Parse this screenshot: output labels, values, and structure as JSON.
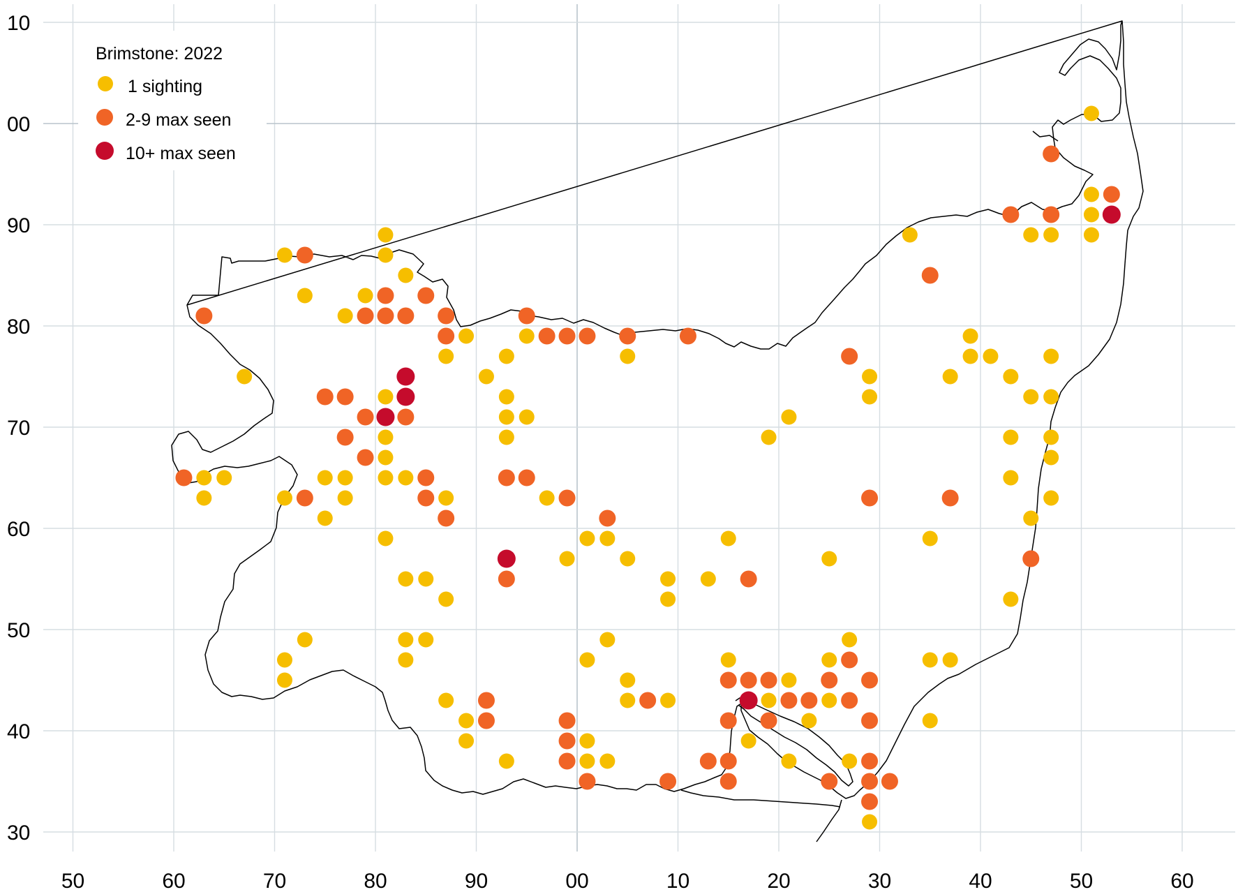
{
  "legend": {
    "title": "Brimstone:  2022",
    "items": [
      {
        "label": "1 sighting",
        "color": "#F6BE00"
      },
      {
        "label": "2-9 max seen",
        "color": "#F06426"
      },
      {
        "label": "10+ max seen",
        "color": "#C50B2C"
      }
    ]
  },
  "axes": {
    "x_ticks": [
      "50",
      "60",
      "70",
      "80",
      "90",
      "00",
      "10",
      "20",
      "30",
      "40",
      "50",
      "60"
    ],
    "y_ticks": [
      "10",
      "00",
      "90",
      "80",
      "70",
      "60",
      "50",
      "40",
      "30"
    ]
  },
  "chart_data": {
    "type": "scatter",
    "x_range": [
      -50,
      60
    ],
    "y_range": [
      30,
      110
    ],
    "categories": [
      "1 sighting",
      "2-9 max seen",
      "10+ max seen"
    ],
    "points": [
      [
        51,
        101,
        0
      ],
      [
        47,
        97,
        1
      ],
      [
        51,
        93,
        0
      ],
      [
        53,
        93,
        1
      ],
      [
        43,
        91,
        1
      ],
      [
        47,
        91,
        1
      ],
      [
        51,
        91,
        0
      ],
      [
        53,
        91,
        2
      ],
      [
        33,
        89,
        0
      ],
      [
        45,
        89,
        0
      ],
      [
        47,
        89,
        0
      ],
      [
        51,
        89,
        0
      ],
      [
        -19,
        89,
        0
      ],
      [
        -19,
        87,
        0
      ],
      [
        -29,
        87,
        0
      ],
      [
        -27,
        87,
        1
      ],
      [
        -17,
        85,
        0
      ],
      [
        35,
        85,
        1
      ],
      [
        -27,
        83,
        0
      ],
      [
        -21,
        83,
        0
      ],
      [
        -19,
        83,
        1
      ],
      [
        -15,
        83,
        1
      ],
      [
        -37,
        81,
        1
      ],
      [
        -23,
        81,
        0
      ],
      [
        -21,
        81,
        1
      ],
      [
        -19,
        81,
        1
      ],
      [
        -17,
        81,
        1
      ],
      [
        -13,
        81,
        1
      ],
      [
        -5,
        81,
        1
      ],
      [
        -13,
        79,
        1
      ],
      [
        -11,
        79,
        0
      ],
      [
        -5,
        79,
        0
      ],
      [
        -3,
        79,
        1
      ],
      [
        -1,
        79,
        1
      ],
      [
        1,
        79,
        1
      ],
      [
        5,
        79,
        1
      ],
      [
        11,
        79,
        1
      ],
      [
        39,
        79,
        0
      ],
      [
        -13,
        77,
        0
      ],
      [
        -7,
        77,
        0
      ],
      [
        5,
        77,
        0
      ],
      [
        27,
        77,
        1
      ],
      [
        39,
        77,
        0
      ],
      [
        41,
        77,
        0
      ],
      [
        47,
        77,
        0
      ],
      [
        -33,
        75,
        0
      ],
      [
        -9,
        75,
        0
      ],
      [
        -17,
        75,
        2
      ],
      [
        29,
        75,
        0
      ],
      [
        37,
        75,
        0
      ],
      [
        43,
        75,
        0
      ],
      [
        -25,
        73,
        1
      ],
      [
        -23,
        73,
        1
      ],
      [
        -19,
        73,
        0
      ],
      [
        -17,
        73,
        2
      ],
      [
        -7,
        73,
        0
      ],
      [
        29,
        73,
        0
      ],
      [
        45,
        73,
        0
      ],
      [
        47,
        73,
        0
      ],
      [
        -21,
        71,
        1
      ],
      [
        -19,
        71,
        2
      ],
      [
        -17,
        71,
        1
      ],
      [
        -7,
        71,
        0
      ],
      [
        -5,
        71,
        0
      ],
      [
        21,
        71,
        0
      ],
      [
        -23,
        69,
        1
      ],
      [
        -19,
        69,
        0
      ],
      [
        -7,
        69,
        0
      ],
      [
        19,
        69,
        0
      ],
      [
        43,
        69,
        0
      ],
      [
        47,
        69,
        0
      ],
      [
        -21,
        67,
        1
      ],
      [
        -19,
        67,
        0
      ],
      [
        47,
        67,
        0
      ],
      [
        -39,
        65,
        1
      ],
      [
        -37,
        65,
        0
      ],
      [
        -35,
        65,
        0
      ],
      [
        -25,
        65,
        0
      ],
      [
        -23,
        65,
        0
      ],
      [
        -19,
        65,
        0
      ],
      [
        -17,
        65,
        0
      ],
      [
        -15,
        65,
        1
      ],
      [
        -7,
        65,
        1
      ],
      [
        -5,
        65,
        1
      ],
      [
        43,
        65,
        0
      ],
      [
        -37,
        63,
        0
      ],
      [
        -29,
        63,
        0
      ],
      [
        -27,
        63,
        1
      ],
      [
        -23,
        63,
        0
      ],
      [
        -15,
        63,
        1
      ],
      [
        -13,
        63,
        0
      ],
      [
        -3,
        63,
        0
      ],
      [
        -1,
        63,
        1
      ],
      [
        29,
        63,
        1
      ],
      [
        37,
        63,
        1
      ],
      [
        47,
        63,
        0
      ],
      [
        -25,
        61,
        0
      ],
      [
        -13,
        61,
        1
      ],
      [
        3,
        61,
        1
      ],
      [
        45,
        61,
        0
      ],
      [
        -19,
        59,
        0
      ],
      [
        1,
        59,
        0
      ],
      [
        3,
        59,
        0
      ],
      [
        15,
        59,
        0
      ],
      [
        35,
        59,
        0
      ],
      [
        -7,
        57,
        2
      ],
      [
        -1,
        57,
        0
      ],
      [
        5,
        57,
        0
      ],
      [
        25,
        57,
        0
      ],
      [
        45,
        57,
        1
      ],
      [
        -17,
        55,
        0
      ],
      [
        -15,
        55,
        0
      ],
      [
        -7,
        55,
        1
      ],
      [
        9,
        55,
        0
      ],
      [
        13,
        55,
        0
      ],
      [
        17,
        55,
        1
      ],
      [
        -13,
        53,
        0
      ],
      [
        9,
        53,
        0
      ],
      [
        43,
        53,
        0
      ],
      [
        -27,
        49,
        0
      ],
      [
        -17,
        49,
        0
      ],
      [
        -15,
        49,
        0
      ],
      [
        3,
        49,
        0
      ],
      [
        27,
        49,
        0
      ],
      [
        -29,
        47,
        0
      ],
      [
        -17,
        47,
        0
      ],
      [
        1,
        47,
        0
      ],
      [
        15,
        47,
        0
      ],
      [
        25,
        47,
        0
      ],
      [
        27,
        47,
        1
      ],
      [
        35,
        47,
        0
      ],
      [
        37,
        47,
        0
      ],
      [
        -29,
        45,
        0
      ],
      [
        5,
        45,
        0
      ],
      [
        15,
        45,
        1
      ],
      [
        17,
        45,
        1
      ],
      [
        19,
        45,
        1
      ],
      [
        21,
        45,
        0
      ],
      [
        25,
        45,
        1
      ],
      [
        29,
        45,
        1
      ],
      [
        -13,
        43,
        0
      ],
      [
        -9,
        43,
        1
      ],
      [
        5,
        43,
        0
      ],
      [
        7,
        43,
        1
      ],
      [
        9,
        43,
        0
      ],
      [
        17,
        43,
        2
      ],
      [
        19,
        43,
        0
      ],
      [
        21,
        43,
        1
      ],
      [
        23,
        43,
        1
      ],
      [
        25,
        43,
        0
      ],
      [
        27,
        43,
        1
      ],
      [
        -11,
        41,
        0
      ],
      [
        -9,
        41,
        1
      ],
      [
        -1,
        41,
        1
      ],
      [
        15,
        41,
        1
      ],
      [
        19,
        41,
        1
      ],
      [
        23,
        41,
        0
      ],
      [
        29,
        41,
        1
      ],
      [
        35,
        41,
        0
      ],
      [
        -11,
        39,
        0
      ],
      [
        -1,
        39,
        1
      ],
      [
        1,
        39,
        0
      ],
      [
        17,
        39,
        0
      ],
      [
        -7,
        37,
        0
      ],
      [
        -1,
        37,
        1
      ],
      [
        1,
        37,
        0
      ],
      [
        3,
        37,
        0
      ],
      [
        13,
        37,
        1
      ],
      [
        15,
        37,
        1
      ],
      [
        21,
        37,
        0
      ],
      [
        27,
        37,
        0
      ],
      [
        29,
        37,
        1
      ],
      [
        1,
        35,
        1
      ],
      [
        9,
        35,
        1
      ],
      [
        15,
        35,
        1
      ],
      [
        25,
        35,
        1
      ],
      [
        29,
        35,
        1
      ],
      [
        31,
        35,
        1
      ],
      [
        29,
        33,
        1
      ],
      [
        29,
        31,
        0
      ]
    ]
  }
}
